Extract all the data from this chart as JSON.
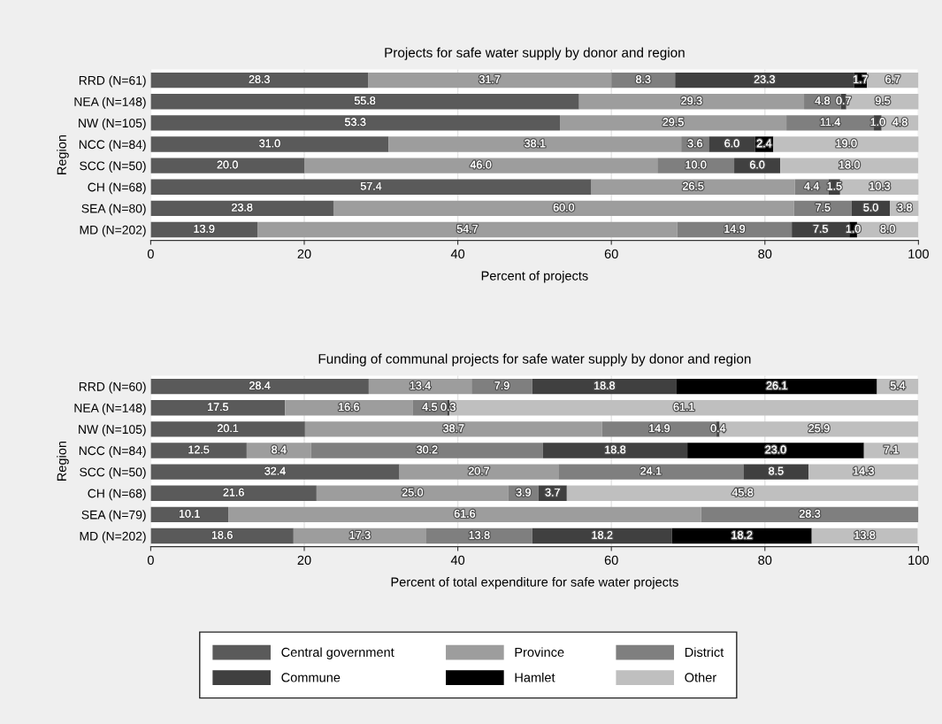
{
  "chart_data": [
    {
      "type": "bar",
      "orientation": "horizontal",
      "stacked": true,
      "title": "Projects for safe water supply by donor and region",
      "xlabel": "Percent of projects",
      "ylabel": "Region",
      "categories": [
        "RRD (N=61)",
        "NEA (N=148)",
        "NW (N=105)",
        "NCC (N=84)",
        "SCC (N=50)",
        "CH (N=68)",
        "SEA (N=80)",
        "MD (N=202)"
      ],
      "xlim": [
        0,
        100
      ],
      "xticks": [
        0,
        20,
        40,
        60,
        80,
        100
      ],
      "grid": "x",
      "series": [
        {
          "color": "#5a5a5a",
          "values": [
            28.3,
            55.8,
            53.3,
            31.0,
            20.0,
            57.4,
            23.8,
            13.9
          ],
          "value_labels": [
            "28.3",
            "55.8",
            "53.3",
            "31.0",
            "20.0",
            "57.4",
            "23.8",
            "13.9"
          ]
        },
        {
          "color": "#9d9d9d",
          "values": [
            31.7,
            29.3,
            29.5,
            38.1,
            46.0,
            26.5,
            60.0,
            54.7
          ],
          "value_labels": [
            "31.7",
            "29.3",
            "29.5",
            "38.1",
            "46.0",
            "26.5",
            "60.0",
            "54.7"
          ]
        },
        {
          "color": "#7f7f7f",
          "values": [
            8.3,
            4.8,
            11.4,
            3.6,
            10.0,
            4.4,
            7.5,
            14.9
          ],
          "value_labels": [
            "8.3",
            "4.8",
            "11.4",
            "3.6",
            "10.0",
            "4.4",
            "7.5",
            "14.9"
          ]
        },
        {
          "color": "#404040",
          "values": [
            23.3,
            0.7,
            1.0,
            6.0,
            6.0,
            1.5,
            5.0,
            7.5
          ],
          "value_labels": [
            "23.3",
            "0.7",
            "1.0",
            "6.0",
            "6.0",
            "1.5",
            "5.0",
            "7.5"
          ]
        },
        {
          "color": "#000000",
          "values": [
            1.7,
            null,
            null,
            2.4,
            null,
            null,
            null,
            1.0
          ],
          "value_labels": [
            "1.7",
            null,
            null,
            "2.4",
            null,
            null,
            null,
            "1.0"
          ]
        },
        {
          "color": "#bfbfbf",
          "values": [
            6.7,
            9.5,
            4.8,
            19.0,
            18.0,
            10.3,
            3.8,
            8.0
          ],
          "value_labels": [
            "6.7",
            "9.5",
            "4.8",
            "19.0",
            "18.0",
            "10.3",
            "3.8",
            "8.0"
          ]
        }
      ]
    },
    {
      "type": "bar",
      "orientation": "horizontal",
      "stacked": true,
      "title": "Funding of communal projects for safe water supply by donor and region",
      "xlabel": "Percent of total expenditure for safe water projects",
      "ylabel": "Region",
      "categories": [
        "RRD (N=60)",
        "NEA (N=148)",
        "NW (N=105)",
        "NCC (N=84)",
        "SCC (N=50)",
        "CH (N=68)",
        "SEA (N=79)",
        "MD (N=202)"
      ],
      "xlim": [
        0,
        100
      ],
      "xticks": [
        0,
        20,
        40,
        60,
        80,
        100
      ],
      "grid": "x",
      "legend": "bottom",
      "series": [
        {
          "name": "Central government",
          "color": "#5a5a5a",
          "values": [
            28.4,
            17.5,
            20.1,
            12.5,
            32.4,
            21.6,
            10.1,
            18.6
          ],
          "value_labels": [
            "28.4",
            "17.5",
            "20.1",
            "12.5",
            "32.4",
            "21.6",
            "10.1",
            "18.6"
          ]
        },
        {
          "name": "Province",
          "color": "#9d9d9d",
          "values": [
            13.4,
            16.6,
            38.7,
            8.4,
            20.7,
            25.0,
            61.6,
            17.3
          ],
          "value_labels": [
            "13.4",
            "16.6",
            "38.7",
            "8.4",
            "20.7",
            "25.0",
            "61.6",
            "17.3"
          ]
        },
        {
          "name": "District",
          "color": "#7f7f7f",
          "values": [
            7.9,
            4.5,
            14.9,
            30.2,
            24.1,
            3.9,
            28.3,
            13.8
          ],
          "value_labels": [
            "7.9",
            "4.5",
            "14.9",
            "30.2",
            "24.1",
            "3.9",
            "28.3",
            "13.8"
          ]
        },
        {
          "name": "Commune",
          "color": "#404040",
          "values": [
            18.8,
            0.3,
            0.4,
            18.8,
            8.5,
            3.7,
            null,
            18.2
          ],
          "value_labels": [
            "18.8",
            "0.3",
            "0.4",
            "18.8",
            "8.5",
            "3.7",
            null,
            "18.2"
          ]
        },
        {
          "name": "Hamlet",
          "color": "#000000",
          "values": [
            26.1,
            null,
            null,
            23.0,
            null,
            null,
            null,
            18.2
          ],
          "value_labels": [
            "26.1",
            null,
            null,
            "23.0",
            null,
            null,
            null,
            "18.2"
          ]
        },
        {
          "name": "Other",
          "color": "#bfbfbf",
          "values": [
            5.4,
            61.1,
            25.9,
            7.1,
            14.3,
            45.8,
            null,
            13.8
          ],
          "value_labels": [
            "5.4",
            "61.1",
            "25.9",
            "7.1",
            "14.3",
            "45.8",
            null,
            "13.8"
          ]
        }
      ]
    }
  ]
}
